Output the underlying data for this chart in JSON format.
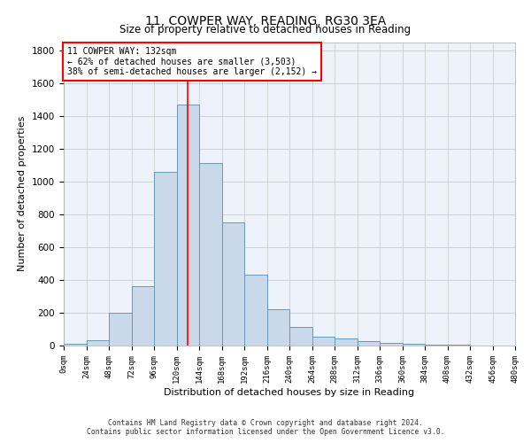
{
  "title": "11, COWPER WAY, READING, RG30 3EA",
  "subtitle": "Size of property relative to detached houses in Reading",
  "xlabel": "Distribution of detached houses by size in Reading",
  "ylabel": "Number of detached properties",
  "bar_color": "#c9d9ea",
  "bar_edge_color": "#6699bb",
  "grid_color": "#cccccc",
  "background_color": "#eef2fa",
  "property_line_x": 132,
  "property_line_color": "red",
  "bin_width": 24,
  "bin_starts": [
    0,
    24,
    48,
    72,
    96,
    120,
    144,
    168,
    192,
    216,
    240,
    264,
    288,
    312,
    336,
    360,
    384,
    408,
    432,
    456
  ],
  "bar_heights": [
    10,
    35,
    200,
    360,
    1060,
    1470,
    1115,
    750,
    430,
    220,
    115,
    55,
    45,
    28,
    18,
    12,
    5,
    3,
    1,
    1
  ],
  "annotation_line1": "11 COWPER WAY: 132sqm",
  "annotation_line2": "← 62% of detached houses are smaller (3,503)",
  "annotation_line3": "38% of semi-detached houses are larger (2,152) →",
  "annotation_box_color": "white",
  "annotation_border_color": "red",
  "ylim": [
    0,
    1850
  ],
  "xlim": [
    0,
    480
  ],
  "yticks": [
    0,
    200,
    400,
    600,
    800,
    1000,
    1200,
    1400,
    1600,
    1800
  ],
  "footnote1": "Contains HM Land Registry data © Crown copyright and database right 2024.",
  "footnote2": "Contains public sector information licensed under the Open Government Licence v3.0."
}
